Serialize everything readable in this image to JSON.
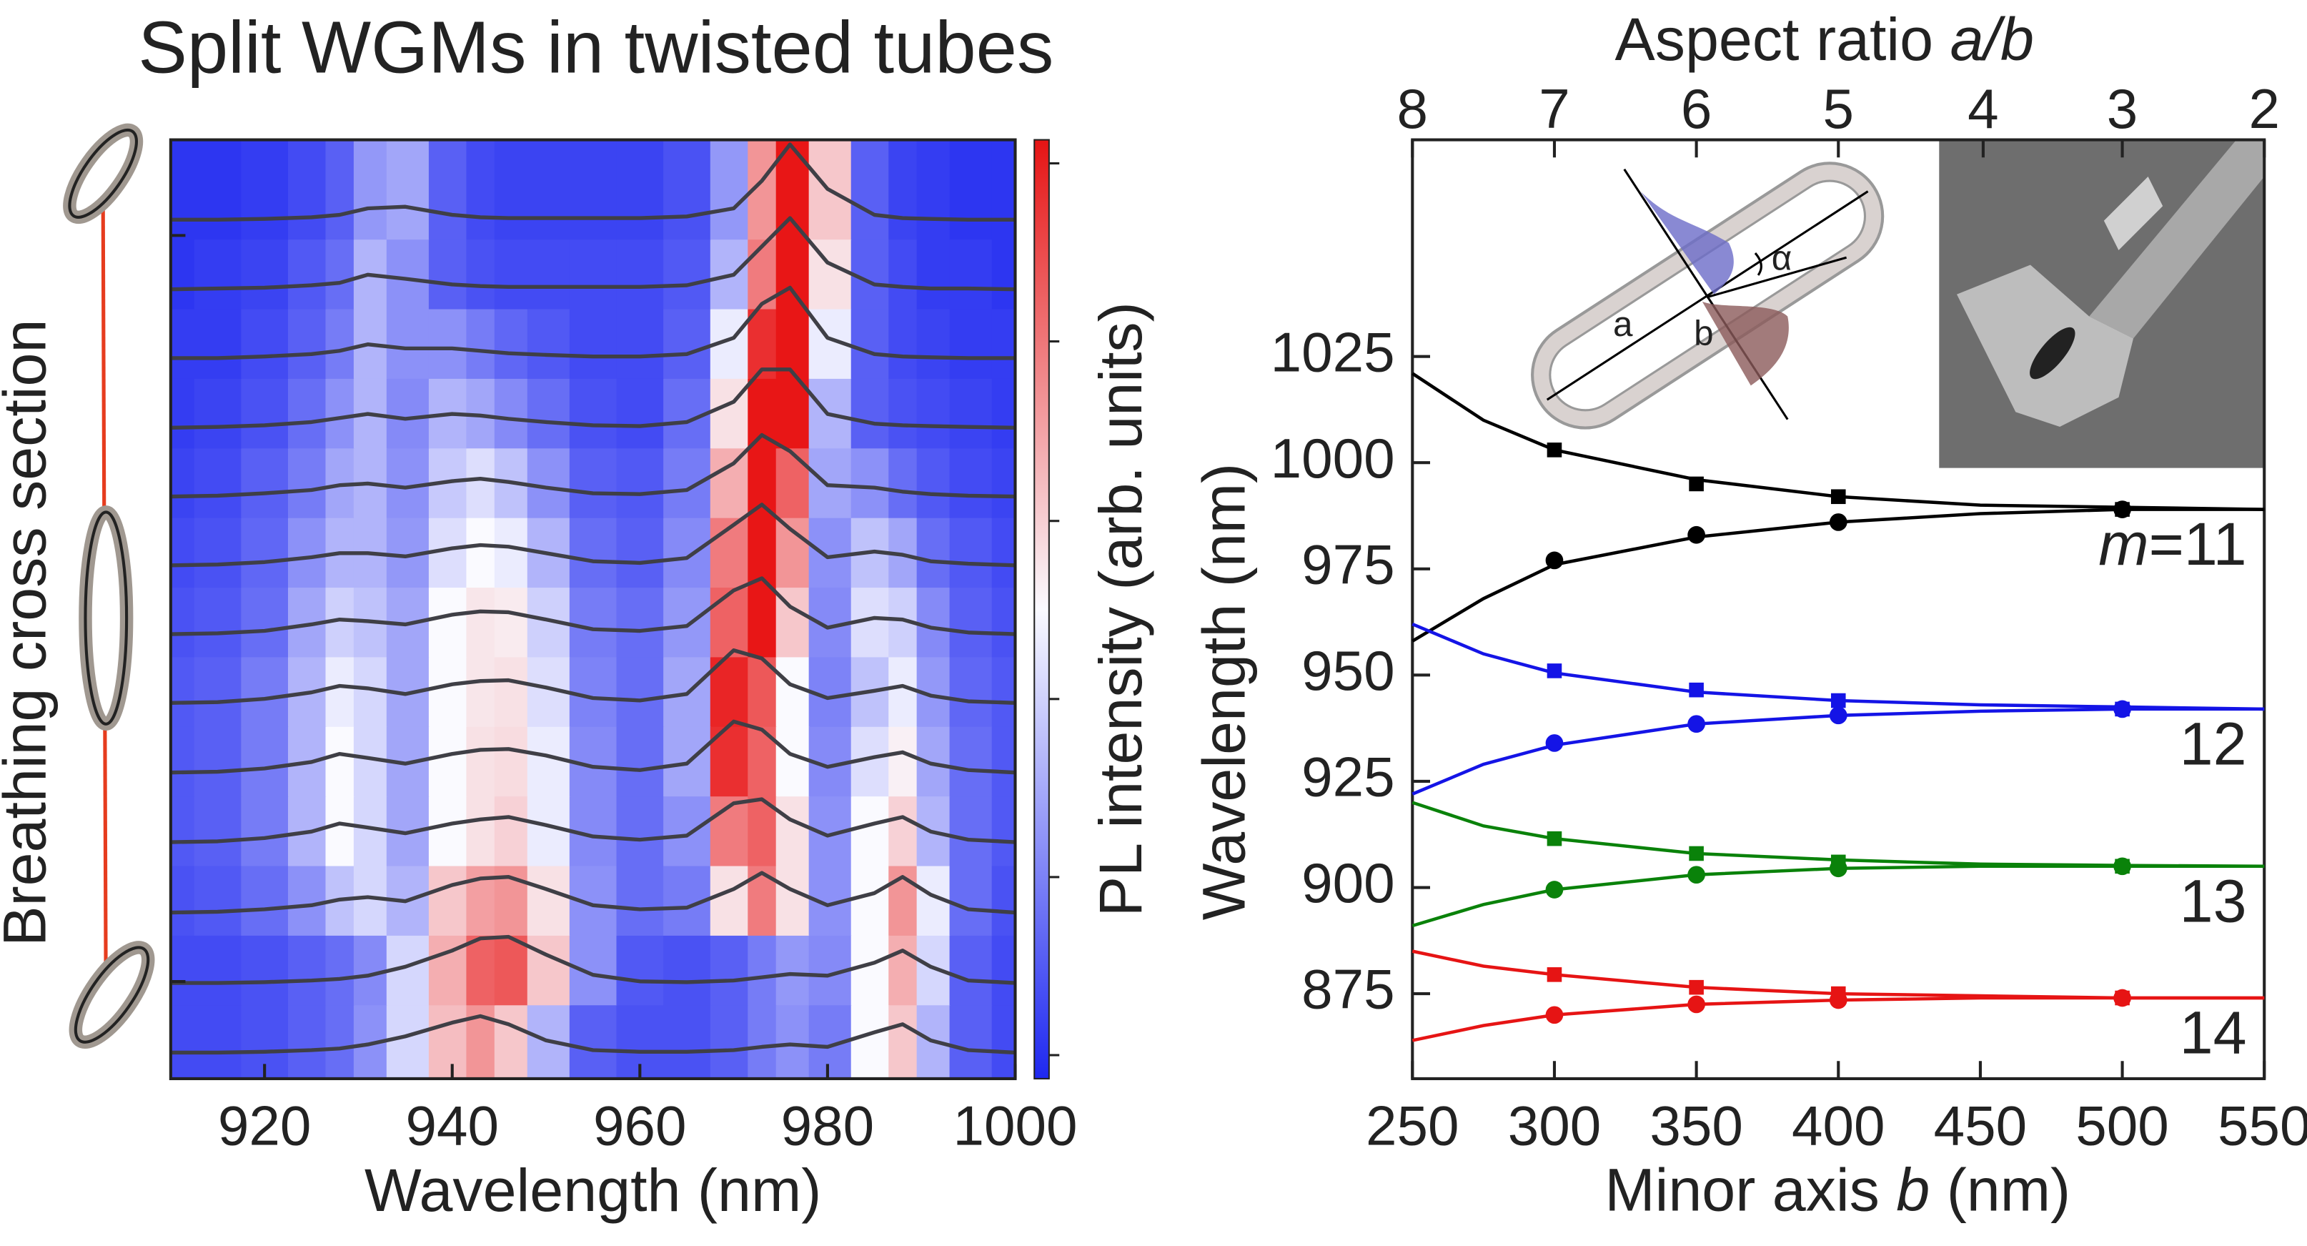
{
  "chart_data": [
    {
      "type": "heatmap",
      "title": "Split WGMs in twisted tubes",
      "xlabel": "Wavelength (nm)",
      "ylabel": "Breathing cross section",
      "colorbar_label": "PL intensity (arb. units)",
      "xlim": [
        910,
        1000
      ],
      "xticks": [
        920,
        940,
        960,
        980,
        1000
      ],
      "x": [
        910,
        915,
        920,
        925,
        928,
        931,
        935,
        940,
        943,
        946,
        950,
        955,
        960,
        965,
        970,
        973,
        976,
        980,
        985,
        988,
        991,
        995,
        1000
      ],
      "series": [
        {
          "values": [
            0.05,
            0.05,
            0.06,
            0.08,
            0.1,
            0.15,
            0.25,
            0.42,
            0.5,
            0.4,
            0.2,
            0.08,
            0.06,
            0.06,
            0.08,
            0.12,
            0.15,
            0.12,
            0.3,
            0.4,
            0.2,
            0.08,
            0.05
          ]
        },
        {
          "values": [
            0.05,
            0.05,
            0.06,
            0.08,
            0.1,
            0.14,
            0.25,
            0.45,
            0.6,
            0.62,
            0.4,
            0.15,
            0.07,
            0.06,
            0.08,
            0.12,
            0.16,
            0.14,
            0.3,
            0.45,
            0.25,
            0.08,
            0.05
          ]
        },
        {
          "values": [
            0.06,
            0.07,
            0.1,
            0.15,
            0.22,
            0.25,
            0.2,
            0.4,
            0.48,
            0.5,
            0.35,
            0.15,
            0.1,
            0.12,
            0.35,
            0.55,
            0.35,
            0.15,
            0.3,
            0.5,
            0.28,
            0.1,
            0.06
          ]
        },
        {
          "values": [
            0.07,
            0.08,
            0.12,
            0.2,
            0.3,
            0.25,
            0.18,
            0.3,
            0.35,
            0.38,
            0.28,
            0.14,
            0.1,
            0.15,
            0.55,
            0.6,
            0.35,
            0.15,
            0.3,
            0.38,
            0.2,
            0.1,
            0.07
          ]
        },
        {
          "values": [
            0.07,
            0.08,
            0.12,
            0.2,
            0.3,
            0.25,
            0.18,
            0.3,
            0.35,
            0.36,
            0.28,
            0.14,
            0.1,
            0.18,
            0.7,
            0.6,
            0.3,
            0.14,
            0.26,
            0.32,
            0.18,
            0.1,
            0.07
          ]
        },
        {
          "values": [
            0.07,
            0.08,
            0.12,
            0.2,
            0.28,
            0.25,
            0.18,
            0.3,
            0.34,
            0.35,
            0.26,
            0.13,
            0.1,
            0.18,
            0.72,
            0.62,
            0.3,
            0.13,
            0.22,
            0.28,
            0.16,
            0.09,
            0.07
          ]
        },
        {
          "values": [
            0.06,
            0.07,
            0.1,
            0.18,
            0.24,
            0.22,
            0.18,
            0.3,
            0.34,
            0.33,
            0.24,
            0.12,
            0.1,
            0.16,
            0.6,
            0.75,
            0.4,
            0.14,
            0.26,
            0.24,
            0.14,
            0.08,
            0.06
          ]
        },
        {
          "values": [
            0.05,
            0.06,
            0.09,
            0.15,
            0.2,
            0.2,
            0.16,
            0.26,
            0.3,
            0.28,
            0.2,
            0.1,
            0.08,
            0.14,
            0.55,
            0.8,
            0.5,
            0.15,
            0.22,
            0.18,
            0.1,
            0.07,
            0.05
          ]
        },
        {
          "values": [
            0.04,
            0.05,
            0.08,
            0.12,
            0.18,
            0.2,
            0.15,
            0.23,
            0.26,
            0.22,
            0.15,
            0.08,
            0.07,
            0.12,
            0.45,
            0.8,
            0.6,
            0.18,
            0.15,
            0.1,
            0.07,
            0.05,
            0.04
          ]
        },
        {
          "values": [
            0.03,
            0.04,
            0.06,
            0.1,
            0.15,
            0.2,
            0.14,
            0.2,
            0.18,
            0.14,
            0.1,
            0.06,
            0.05,
            0.1,
            0.35,
            0.75,
            0.75,
            0.2,
            0.08,
            0.06,
            0.05,
            0.04,
            0.03
          ]
        },
        {
          "values": [
            0.03,
            0.03,
            0.05,
            0.08,
            0.12,
            0.2,
            0.15,
            0.15,
            0.12,
            0.09,
            0.07,
            0.05,
            0.05,
            0.08,
            0.28,
            0.7,
            0.9,
            0.28,
            0.08,
            0.05,
            0.04,
            0.03,
            0.03
          ]
        },
        {
          "values": [
            0.02,
            0.03,
            0.04,
            0.07,
            0.1,
            0.2,
            0.15,
            0.08,
            0.06,
            0.05,
            0.05,
            0.05,
            0.05,
            0.07,
            0.2,
            0.55,
            0.9,
            0.35,
            0.08,
            0.05,
            0.03,
            0.03,
            0.02
          ]
        },
        {
          "values": [
            0.02,
            0.02,
            0.03,
            0.05,
            0.08,
            0.16,
            0.18,
            0.08,
            0.05,
            0.04,
            0.04,
            0.04,
            0.04,
            0.06,
            0.16,
            0.5,
            0.95,
            0.4,
            0.08,
            0.04,
            0.03,
            0.02,
            0.02
          ]
        }
      ]
    },
    {
      "type": "scatter",
      "xlabel_parts": [
        "Minor axis ",
        "b",
        " (nm)"
      ],
      "x2label_parts": [
        "Aspect ratio ",
        "a/b"
      ],
      "ylabel": "Wavelength (nm)",
      "xlim": [
        250,
        550
      ],
      "xticks": [
        250,
        300,
        350,
        400,
        450,
        500,
        550
      ],
      "x2ticks": [
        {
          "value": 250,
          "label": "8"
        },
        {
          "value": 300,
          "label": "7"
        },
        {
          "value": 350,
          "label": "6"
        },
        {
          "value": 400,
          "label": "5"
        },
        {
          "value": 451,
          "label": "4"
        },
        {
          "value": 500,
          "label": "3"
        },
        {
          "value": 550,
          "label": "2"
        }
      ],
      "ylim": [
        855,
        1076
      ],
      "yticks": [
        875,
        900,
        925,
        950,
        975,
        1000,
        1025
      ],
      "series": [
        {
          "color": "#000000",
          "marker": "square",
          "x": [
            300,
            350,
            400,
            500
          ],
          "values": [
            1003,
            995,
            992,
            989
          ]
        },
        {
          "color": "#000000",
          "marker": "circle",
          "x": [
            300,
            350,
            400,
            500
          ],
          "values": [
            977,
            983,
            986,
            989
          ]
        },
        {
          "color": "#1414e6",
          "marker": "square",
          "x": [
            300,
            350,
            400,
            500
          ],
          "values": [
            951,
            946.5,
            944,
            942
          ]
        },
        {
          "color": "#1414e6",
          "marker": "circle",
          "x": [
            300,
            350,
            400,
            500
          ],
          "values": [
            934,
            938.5,
            940.5,
            942
          ]
        },
        {
          "color": "#0a820a",
          "marker": "square",
          "x": [
            300,
            350,
            400,
            500
          ],
          "values": [
            911.5,
            908,
            906,
            905
          ]
        },
        {
          "color": "#0a820a",
          "marker": "circle",
          "x": [
            300,
            350,
            400,
            500
          ],
          "values": [
            899.5,
            903,
            904.5,
            905
          ]
        },
        {
          "color": "#e61414",
          "marker": "square",
          "x": [
            300,
            350,
            400,
            500
          ],
          "values": [
            879.5,
            876.5,
            875,
            874
          ]
        },
        {
          "color": "#e61414",
          "marker": "circle",
          "x": [
            300,
            350,
            400,
            500
          ],
          "values": [
            870,
            872.5,
            873.5,
            874
          ]
        }
      ],
      "fit_x": [
        250,
        275,
        300,
        350,
        400,
        450,
        500,
        550
      ],
      "fits": [
        {
          "color": "#000000",
          "values": [
            1021,
            1010,
            1003,
            996,
            992,
            990,
            989.5,
            989
          ]
        },
        {
          "color": "#000000",
          "values": [
            958,
            968,
            976,
            982.5,
            986,
            988,
            989,
            989
          ]
        },
        {
          "color": "#1414e6",
          "values": [
            962,
            955,
            950.5,
            946,
            944,
            943,
            942.5,
            942
          ]
        },
        {
          "color": "#1414e6",
          "values": [
            922,
            929,
            933.5,
            938.5,
            940.5,
            941.5,
            942,
            942
          ]
        },
        {
          "color": "#0a820a",
          "values": [
            920,
            914.5,
            911.5,
            908,
            906.5,
            905.5,
            905.2,
            905
          ]
        },
        {
          "color": "#0a820a",
          "values": [
            891,
            896,
            899.5,
            903,
            904.5,
            905,
            905,
            905
          ]
        },
        {
          "color": "#e61414",
          "values": [
            885,
            881.5,
            879.5,
            876.5,
            875,
            874.5,
            874,
            874
          ]
        },
        {
          "color": "#e61414",
          "values": [
            864,
            867.5,
            870,
            872.5,
            873.5,
            874,
            874,
            874
          ]
        }
      ],
      "mode_labels": [
        {
          "prefix": "m",
          "text": "=11"
        },
        {
          "text": "12"
        },
        {
          "text": "13"
        },
        {
          "text": "14"
        }
      ],
      "inset_labels": [
        "a",
        "b",
        "α"
      ]
    }
  ]
}
